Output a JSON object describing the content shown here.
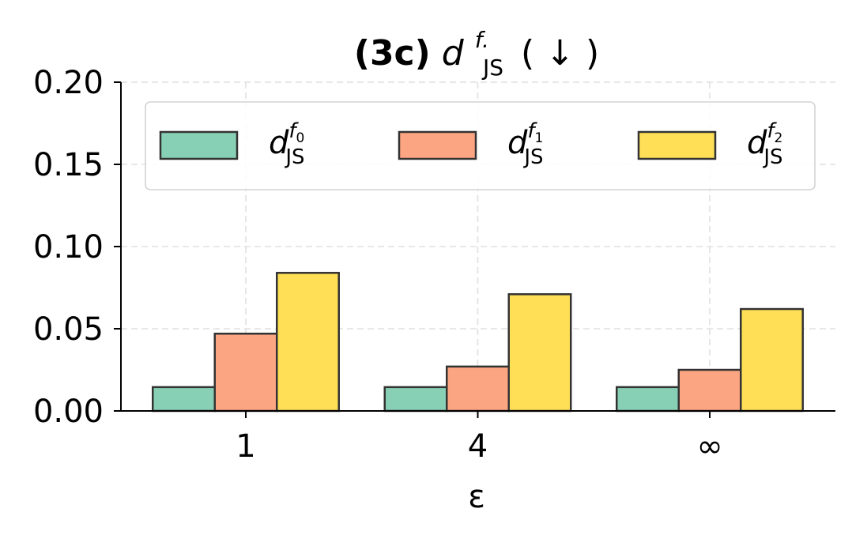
{
  "chart_data": {
    "type": "bar",
    "title": {
      "prefix": "(3c)",
      "main": "d",
      "sup": "f.",
      "sub": "JS",
      "suffix": "( ↓ )"
    },
    "xlabel": "ε",
    "categories": [
      "1",
      "4",
      "∞"
    ],
    "series": [
      {
        "name_main": "d",
        "name_sup": "f",
        "name_sup_sub": "0",
        "name_sub": "JS",
        "color": "#88d0b5",
        "values": [
          0.0145,
          0.0145,
          0.0145
        ]
      },
      {
        "name_main": "d",
        "name_sup": "f",
        "name_sup_sub": "1",
        "name_sub": "JS",
        "color": "#fca582",
        "values": [
          0.047,
          0.027,
          0.025
        ]
      },
      {
        "name_main": "d",
        "name_sup": "f",
        "name_sup_sub": "2",
        "name_sub": "JS",
        "color": "#ffdf56",
        "values": [
          0.084,
          0.071,
          0.062
        ]
      }
    ],
    "ylim": [
      0,
      0.2
    ],
    "yticks": [
      0.0,
      0.05,
      0.1,
      0.15,
      0.2
    ],
    "ytick_labels": [
      "0.00",
      "0.05",
      "0.10",
      "0.15",
      "0.20"
    ],
    "grid": true,
    "legend_position": "top",
    "edge_color": "#333333"
  }
}
